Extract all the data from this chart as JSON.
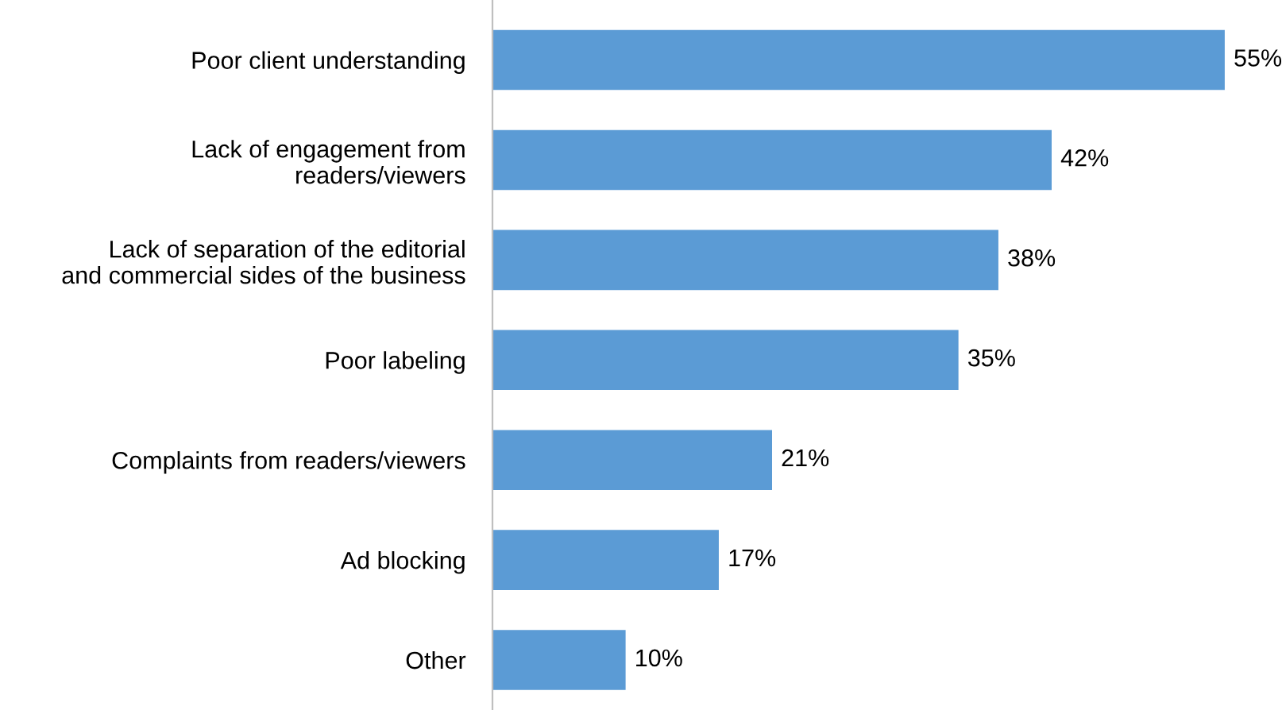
{
  "chart_data": {
    "type": "bar",
    "orientation": "horizontal",
    "data_labels": true,
    "grid": false,
    "legend": false,
    "categories": [
      "Poor client understanding",
      "Lack of engagement from\nreaders/viewers",
      "Lack of separation of the editorial\nand commercial sides of the business",
      "Poor labeling",
      "Complaints from readers/viewers",
      "Ad blocking",
      "Other"
    ],
    "values": [
      55,
      42,
      38,
      35,
      21,
      17,
      10
    ],
    "value_labels": [
      "55%",
      "42%",
      "38%",
      "35%",
      "21%",
      "17%",
      "10%"
    ],
    "color": "#5b9bd5"
  }
}
